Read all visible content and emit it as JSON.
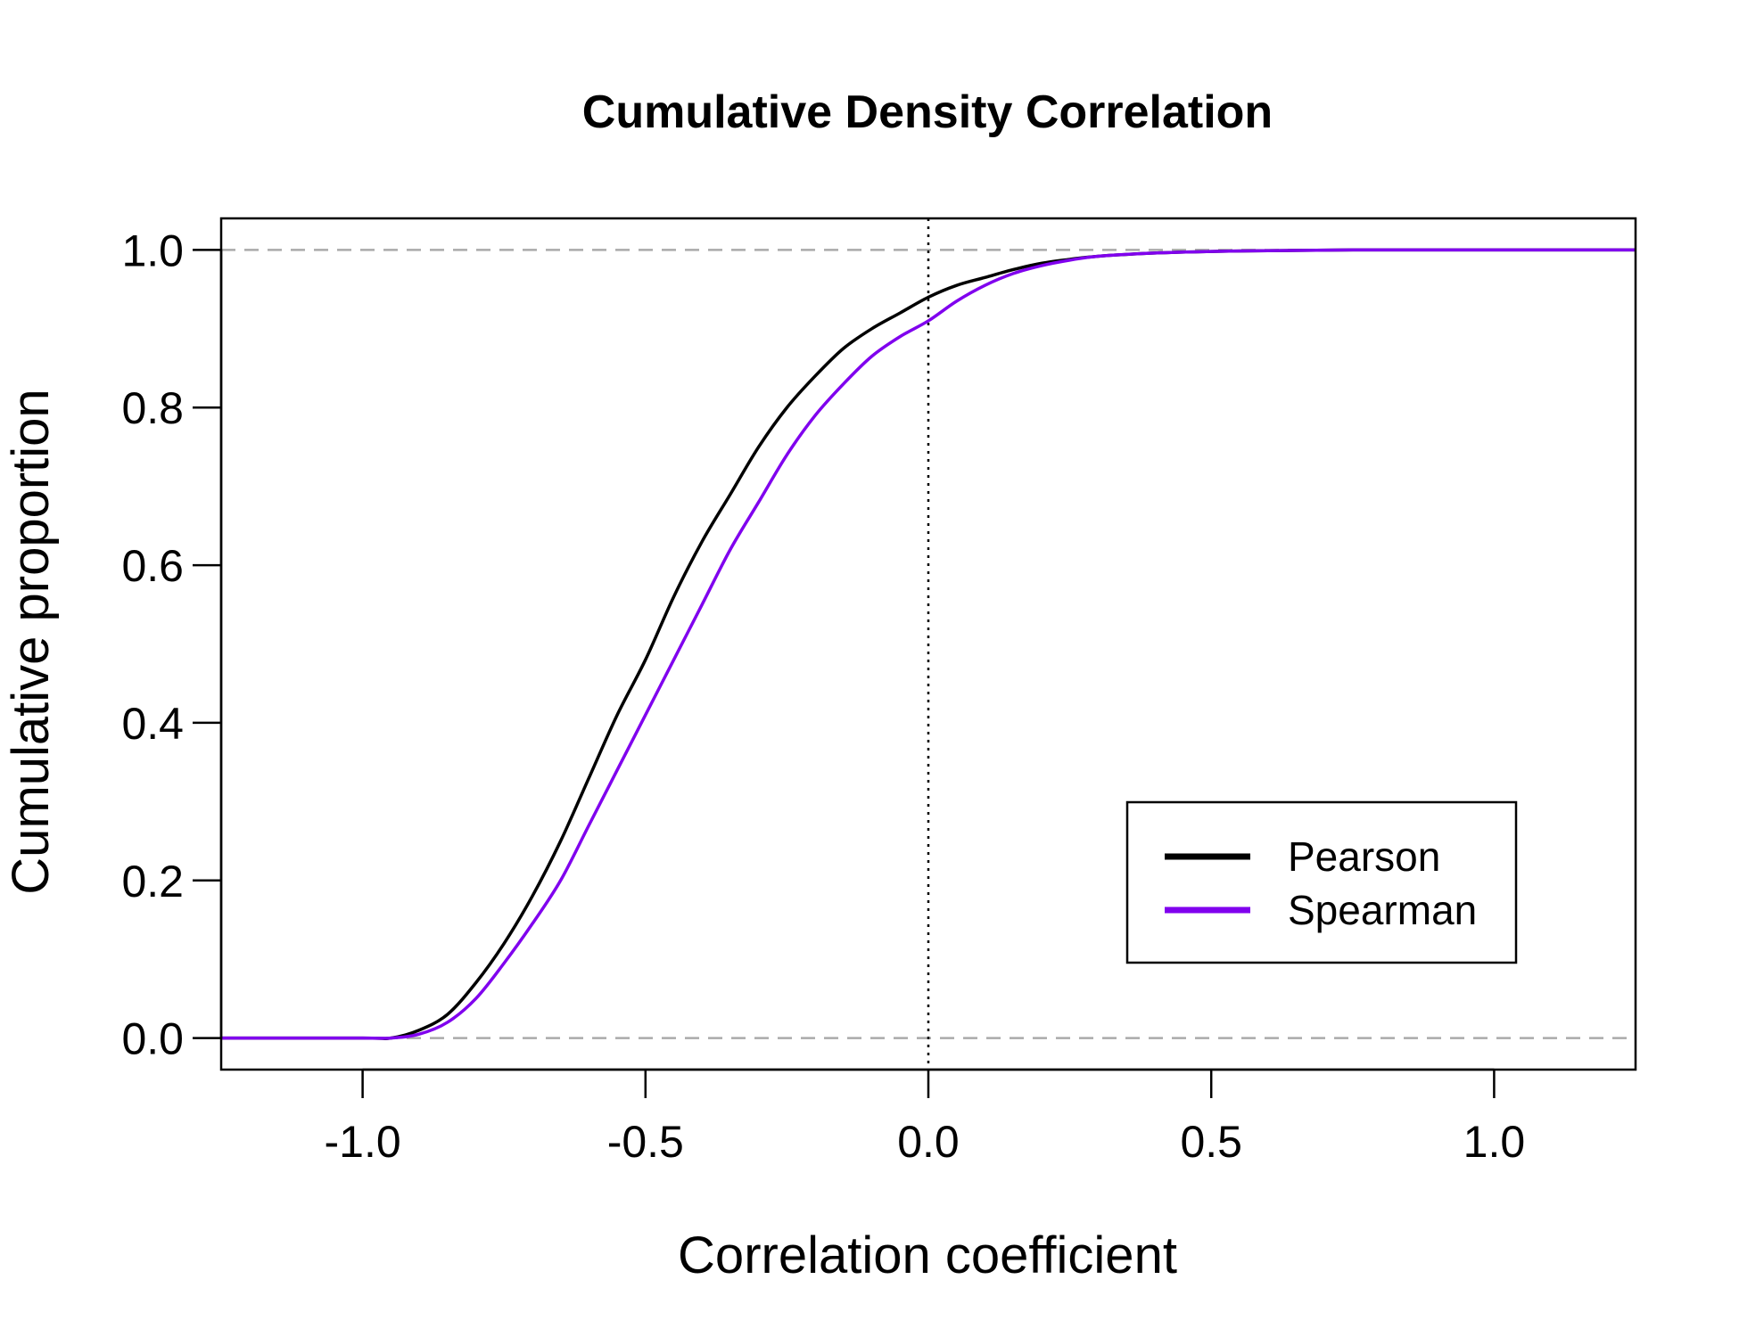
{
  "chart_data": {
    "type": "line",
    "title": "Cumulative Density Correlation",
    "xlabel": "Correlation coefficient",
    "ylabel": "Cumulative proportion",
    "xlim": [
      -1.25,
      1.25
    ],
    "ylim": [
      -0.04,
      1.04
    ],
    "xticks": [
      -1.0,
      -0.5,
      0.0,
      0.5,
      1.0
    ],
    "xtick_labels": [
      "-1.0",
      "-0.5",
      "0.0",
      "0.5",
      "1.0"
    ],
    "yticks": [
      0.0,
      0.2,
      0.4,
      0.6,
      0.8,
      1.0
    ],
    "ytick_labels": [
      "0.0",
      "0.2",
      "0.4",
      "0.6",
      "0.8",
      "1.0"
    ],
    "reference_lines": [
      {
        "orientation": "horizontal",
        "value": 0.0,
        "style": "dashed",
        "color": "#aaaaaa"
      },
      {
        "orientation": "horizontal",
        "value": 1.0,
        "style": "dashed",
        "color": "#aaaaaa"
      },
      {
        "orientation": "vertical",
        "value": 0.0,
        "style": "dotted",
        "color": "#000000"
      }
    ],
    "legend_position": "bottom-right",
    "series": [
      {
        "name": "Pearson",
        "color": "#000000",
        "x": [
          -1.25,
          -1.0,
          -0.95,
          -0.9,
          -0.85,
          -0.8,
          -0.75,
          -0.7,
          -0.65,
          -0.6,
          -0.55,
          -0.5,
          -0.45,
          -0.4,
          -0.35,
          -0.3,
          -0.25,
          -0.2,
          -0.15,
          -0.1,
          -0.05,
          0.0,
          0.05,
          0.1,
          0.15,
          0.2,
          0.25,
          0.3,
          0.4,
          0.5,
          0.6,
          0.75,
          1.0,
          1.25
        ],
        "y": [
          0.0,
          0.0,
          0.0,
          0.01,
          0.03,
          0.07,
          0.12,
          0.18,
          0.25,
          0.33,
          0.41,
          0.48,
          0.56,
          0.63,
          0.69,
          0.75,
          0.8,
          0.84,
          0.875,
          0.9,
          0.92,
          0.94,
          0.955,
          0.965,
          0.975,
          0.983,
          0.988,
          0.992,
          0.996,
          0.998,
          0.999,
          1.0,
          1.0,
          1.0
        ]
      },
      {
        "name": "Spearman",
        "color": "#8000ee",
        "x": [
          -1.25,
          -1.0,
          -0.95,
          -0.9,
          -0.85,
          -0.8,
          -0.75,
          -0.7,
          -0.65,
          -0.6,
          -0.55,
          -0.5,
          -0.45,
          -0.4,
          -0.35,
          -0.3,
          -0.25,
          -0.2,
          -0.15,
          -0.1,
          -0.05,
          0.0,
          0.05,
          0.1,
          0.15,
          0.2,
          0.25,
          0.3,
          0.4,
          0.5,
          0.6,
          0.75,
          1.0,
          1.25
        ],
        "y": [
          0.0,
          0.0,
          0.0,
          0.005,
          0.02,
          0.05,
          0.095,
          0.145,
          0.2,
          0.27,
          0.34,
          0.41,
          0.48,
          0.55,
          0.62,
          0.68,
          0.74,
          0.79,
          0.83,
          0.865,
          0.89,
          0.91,
          0.935,
          0.955,
          0.97,
          0.98,
          0.987,
          0.992,
          0.996,
          0.998,
          0.999,
          1.0,
          1.0,
          1.0
        ]
      }
    ]
  }
}
